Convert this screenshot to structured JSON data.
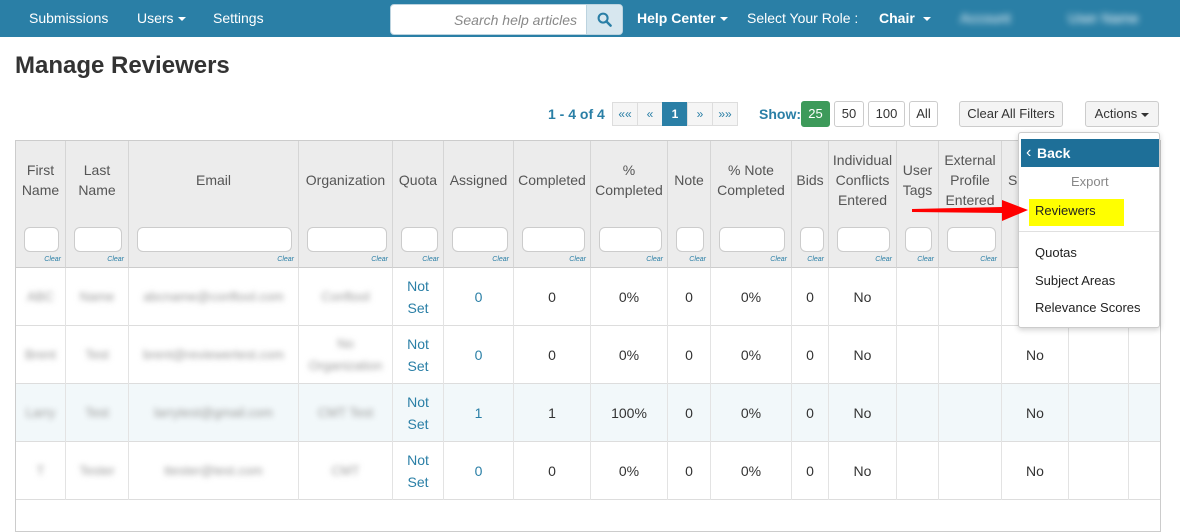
{
  "nav": {
    "submissions": "Submissions",
    "users": "Users",
    "settings": "Settings",
    "search_placeholder": "Search help articles",
    "help_center": "Help Center",
    "role_label": "Select Your Role :",
    "role_value": "Chair",
    "blurred_1": "Account",
    "blurred_2": "User Name"
  },
  "page_title": "Manage Reviewers",
  "toolbar": {
    "range": "1 - 4 of 4",
    "pager": [
      "««",
      "«",
      "1",
      "»",
      "»»"
    ],
    "pager_active": "1",
    "show_label": "Show:",
    "show_options": [
      "25",
      "50",
      "100",
      "All"
    ],
    "show_active": "25",
    "clear_filters": "Clear All Filters",
    "actions": "Actions"
  },
  "table": {
    "columns": [
      "First Name",
      "Last Name",
      "Email",
      "Organization",
      "Quota",
      "Assigned",
      "Completed",
      "% Completed",
      "Note",
      "% Note Completed",
      "Bids",
      "Individual Conflicts Entered",
      "User Tags",
      "External Profile Entered",
      "S"
    ],
    "filter_clear": "Clear",
    "rows": [
      {
        "first": "ABC",
        "last": "Name",
        "email": "abcname@conftool.com",
        "org": "Conftool",
        "quota": "Not Set",
        "assigned": "0",
        "completed": "0",
        "pct_completed": "0%",
        "note": "0",
        "pct_note": "0%",
        "bids": "0",
        "conflicts": "No",
        "extra": ""
      },
      {
        "first": "Brent",
        "last": "Test",
        "email": "brent@reviewertest.com",
        "org": "No Organization",
        "quota": "Not Set",
        "assigned": "0",
        "completed": "0",
        "pct_completed": "0%",
        "note": "0",
        "pct_note": "0%",
        "bids": "0",
        "conflicts": "No",
        "extra": "No"
      },
      {
        "first": "Larry",
        "last": "Test",
        "email": "larrytest@gmail.com",
        "org": "CMT Test",
        "quota": "Not Set",
        "assigned": "1",
        "completed": "1",
        "pct_completed": "100%",
        "note": "0",
        "pct_note": "0%",
        "bids": "0",
        "conflicts": "No",
        "extra": "No"
      },
      {
        "first": "T",
        "last": "Tester",
        "email": "ttester@test.com",
        "org": "CMT",
        "quota": "Not Set",
        "assigned": "0",
        "completed": "0",
        "pct_completed": "0%",
        "note": "0",
        "pct_note": "0%",
        "bids": "0",
        "conflicts": "No",
        "extra": "No"
      }
    ]
  },
  "actions_menu": {
    "back": "Back",
    "export": "Export",
    "items": [
      "Reviewers",
      "Quotas",
      "Subject Areas",
      "Relevance Scores"
    ],
    "highlight_color": "#ffff00",
    "arrow_color": "#ff0000"
  },
  "colors": {
    "nav_bg": "#2a7fa6",
    "accent": "#2a7fa6",
    "active_green": "#3d9a5a"
  }
}
